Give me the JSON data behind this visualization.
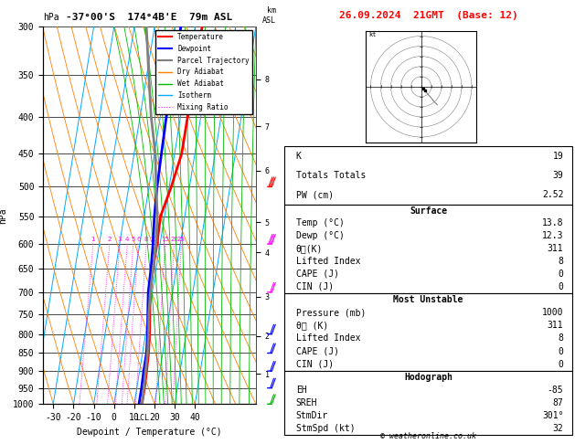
{
  "title_left": "-37°00'S  174°4B'E  79m ASL",
  "title_right": "26.09.2024  21GMT  (Base: 12)",
  "xlabel": "Dewpoint / Temperature (°C)",
  "ylabel_left": "hPa",
  "pressure_levels": [
    300,
    350,
    400,
    450,
    500,
    550,
    600,
    650,
    700,
    750,
    800,
    850,
    900,
    950,
    1000
  ],
  "temp_x": [
    13.5,
    13.5,
    13.5,
    13.5,
    11.0,
    8.0,
    8.5,
    8.5,
    9.0,
    10.5,
    12.0,
    13.0,
    13.5,
    13.8,
    13.8
  ],
  "dewp_x": [
    3.0,
    3.0,
    3.0,
    3.5,
    4.0,
    5.0,
    6.5,
    7.5,
    8.0,
    9.5,
    11.0,
    12.0,
    12.0,
    12.3,
    12.3
  ],
  "parcel_x": [
    -14.0,
    -9.0,
    -4.5,
    0.5,
    3.5,
    6.5,
    8.0,
    8.5,
    9.0,
    10.0,
    11.5,
    12.5,
    13.0,
    13.5,
    13.8
  ],
  "x_min": -35,
  "x_max": 40,
  "temp_color": "#ff0000",
  "dewp_color": "#0000ff",
  "parcel_color": "#808080",
  "dry_adiabat_color": "#ff8000",
  "wet_adiabat_color": "#00bb00",
  "isotherm_color": "#00aaff",
  "mixing_ratio_color": "#ff00ff",
  "background_color": "#ffffff",
  "stats": {
    "K": 19,
    "Totals_Totals": 39,
    "PW_cm": 2.52,
    "Surface_Temp": 13.8,
    "Surface_Dewp": 12.3,
    "Surface_thetae": 311,
    "Surface_LI": 8,
    "Surface_CAPE": 0,
    "Surface_CIN": 0,
    "MU_Pressure": 1000,
    "MU_thetae": 311,
    "MU_LI": 8,
    "MU_CAPE": 0,
    "MU_CIN": 0,
    "EH": -85,
    "SREH": 87,
    "StmDir": "301°",
    "StmSpd": 32
  },
  "km_pressures": {
    "1": 908,
    "2": 805,
    "3": 710,
    "4": 616,
    "5": 560,
    "6": 475,
    "7": 412,
    "8": 355
  },
  "copyright": "© weatheronline.co.uk",
  "lcl_label": "LCL",
  "wind_barbs": [
    {
      "p": 1000,
      "u": -5,
      "v": -10,
      "color": "#00aa00"
    },
    {
      "p": 950,
      "u": -5,
      "v": -12,
      "color": "#0000ff"
    },
    {
      "p": 900,
      "u": -6,
      "v": -13,
      "color": "#0000ff"
    },
    {
      "p": 850,
      "u": -7,
      "v": -14,
      "color": "#0000ff"
    },
    {
      "p": 800,
      "u": -8,
      "v": -15,
      "color": "#0000ff"
    },
    {
      "p": 700,
      "u": -10,
      "v": -18,
      "color": "#ff00ff"
    },
    {
      "p": 600,
      "u": -12,
      "v": -22,
      "color": "#ff00ff"
    },
    {
      "p": 500,
      "u": -15,
      "v": -28,
      "color": "#ff0000"
    }
  ]
}
